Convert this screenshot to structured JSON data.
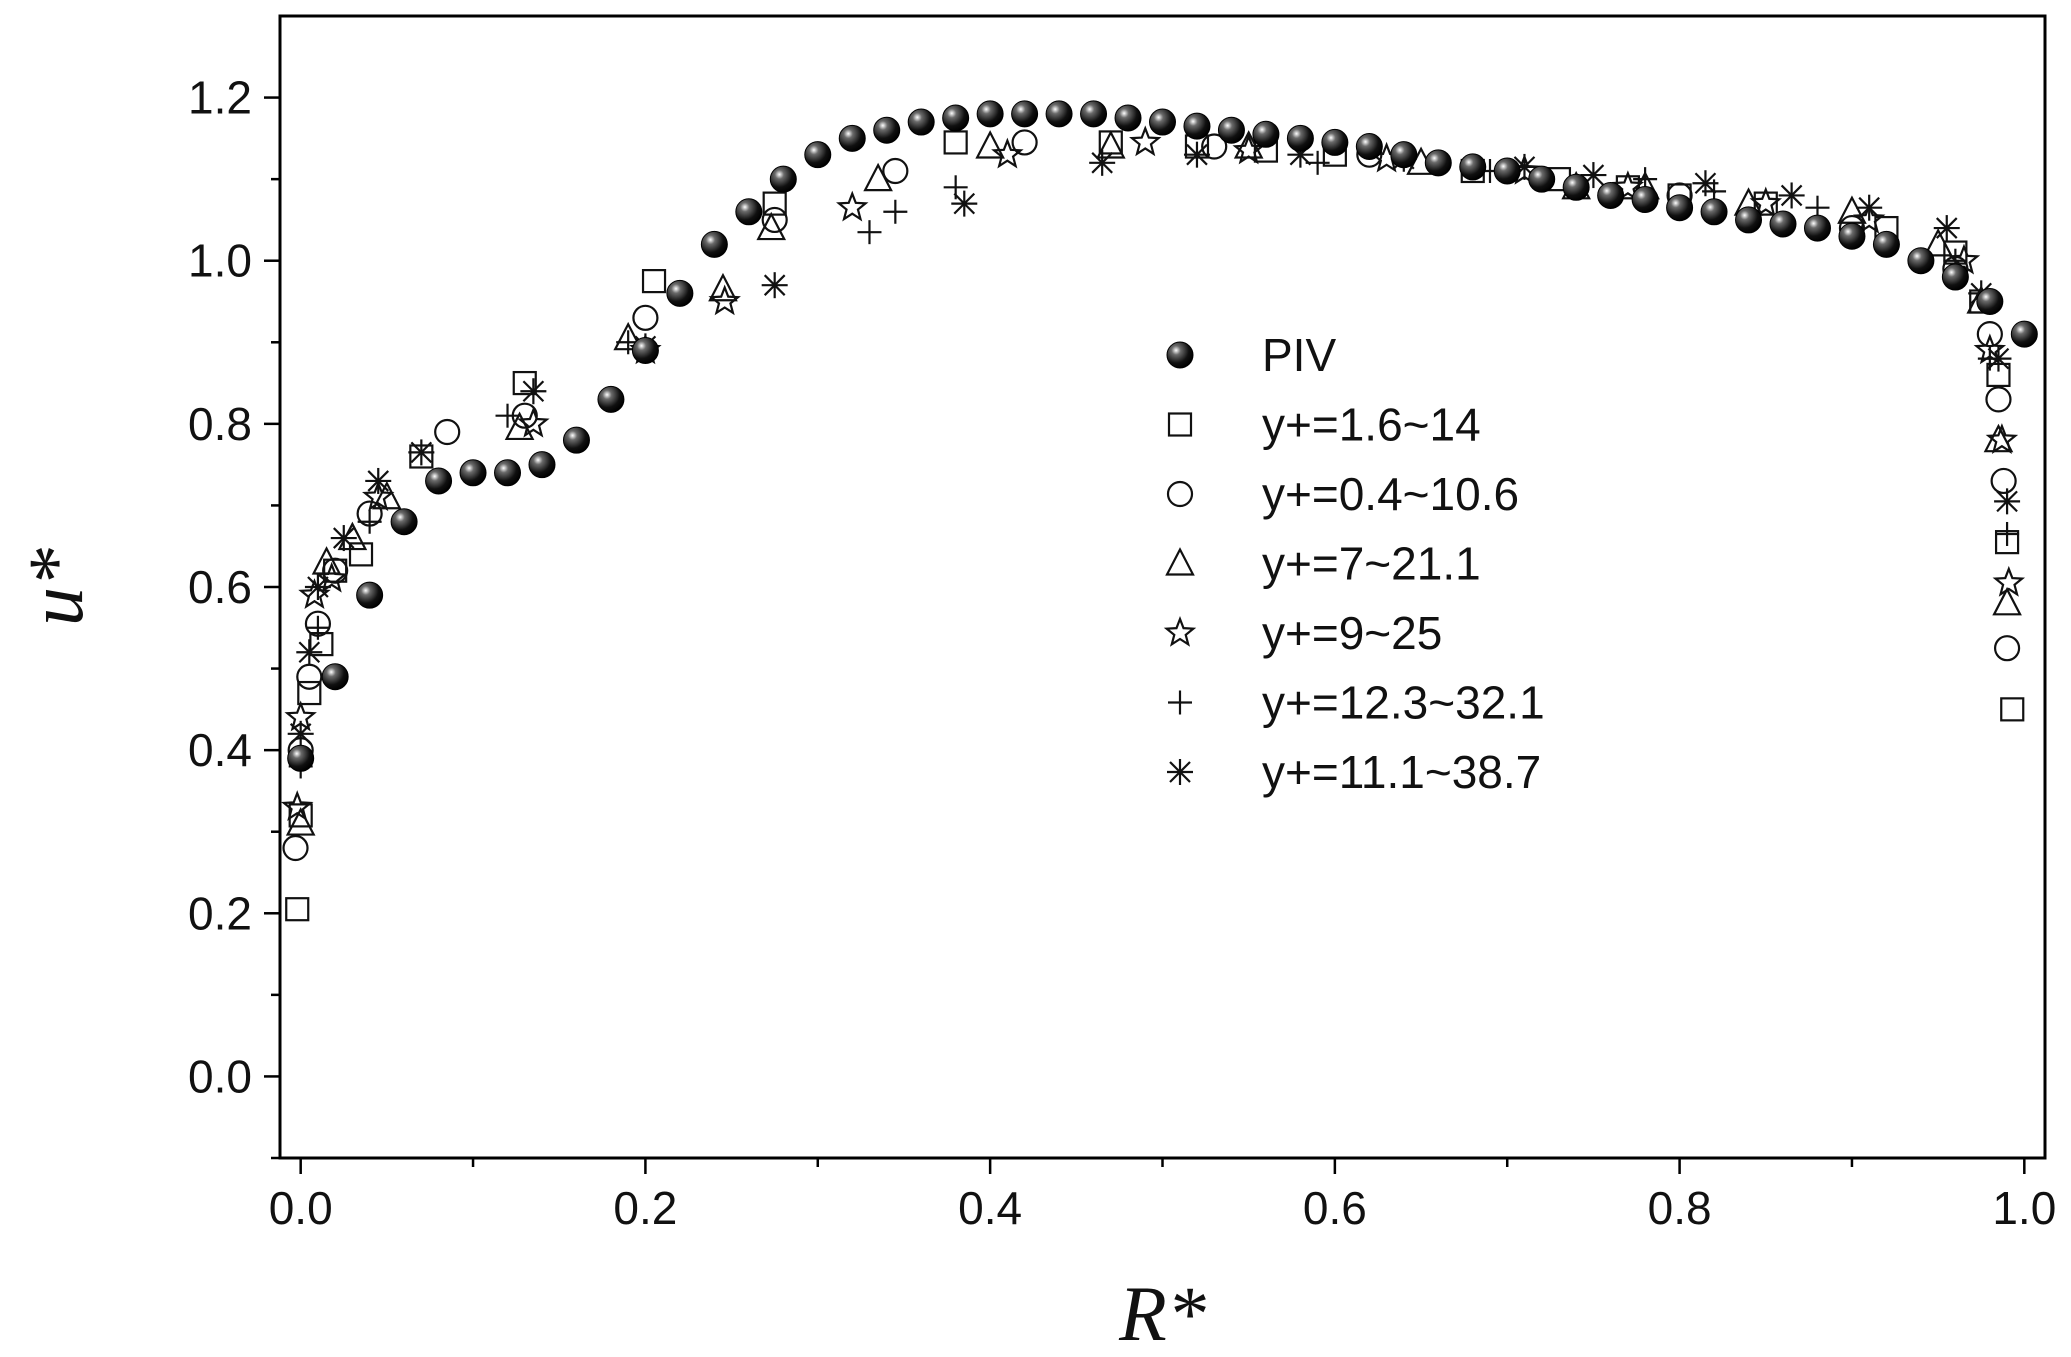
{
  "chart_data": {
    "type": "scatter",
    "xlabel": "R*",
    "ylabel": "u*",
    "xlim": [
      -0.012,
      1.012
    ],
    "ylim": [
      -0.1,
      1.3
    ],
    "xticks": [
      "0.0",
      "0.2",
      "0.4",
      "0.6",
      "0.8",
      "1.0"
    ],
    "yticks": [
      "0.0",
      "0.2",
      "0.4",
      "0.6",
      "0.8",
      "1.0",
      "1.2"
    ],
    "legend_position": "center-right",
    "series": [
      {
        "name": "PIV",
        "marker": "filled-circle",
        "x": [
          0.0,
          0.02,
          0.04,
          0.06,
          0.08,
          0.1,
          0.12,
          0.14,
          0.16,
          0.18,
          0.2,
          0.22,
          0.24,
          0.26,
          0.28,
          0.3,
          0.32,
          0.34,
          0.36,
          0.38,
          0.4,
          0.42,
          0.44,
          0.46,
          0.48,
          0.5,
          0.52,
          0.54,
          0.56,
          0.58,
          0.6,
          0.62,
          0.64,
          0.66,
          0.68,
          0.7,
          0.72,
          0.74,
          0.76,
          0.78,
          0.8,
          0.82,
          0.84,
          0.86,
          0.88,
          0.9,
          0.92,
          0.94,
          0.96,
          0.98,
          1.0
        ],
        "y": [
          0.39,
          0.49,
          0.59,
          0.68,
          0.73,
          0.74,
          0.74,
          0.75,
          0.78,
          0.83,
          0.89,
          0.96,
          1.02,
          1.06,
          1.1,
          1.13,
          1.15,
          1.16,
          1.17,
          1.175,
          1.18,
          1.18,
          1.18,
          1.18,
          1.175,
          1.17,
          1.165,
          1.16,
          1.155,
          1.15,
          1.145,
          1.14,
          1.13,
          1.12,
          1.115,
          1.11,
          1.1,
          1.09,
          1.08,
          1.075,
          1.065,
          1.06,
          1.05,
          1.045,
          1.04,
          1.03,
          1.02,
          1.0,
          0.98,
          0.95,
          0.91
        ]
      },
      {
        "name": "y+=1.6~14",
        "marker": "open-square",
        "x": [
          -0.002,
          0.0,
          0.005,
          0.012,
          0.02,
          0.035,
          0.07,
          0.13,
          0.205,
          0.275,
          0.38,
          0.47,
          0.52,
          0.56,
          0.6,
          0.68,
          0.73,
          0.77,
          0.8,
          0.85,
          0.92,
          0.96,
          0.975,
          0.985,
          0.99,
          0.993
        ],
        "y": [
          0.205,
          0.32,
          0.47,
          0.53,
          0.62,
          0.64,
          0.76,
          0.85,
          0.975,
          1.07,
          1.145,
          1.145,
          1.14,
          1.135,
          1.13,
          1.11,
          1.1,
          1.09,
          1.08,
          1.07,
          1.04,
          1.01,
          0.95,
          0.86,
          0.655,
          0.45
        ]
      },
      {
        "name": "y+=0.4~10.6",
        "marker": "open-circle",
        "x": [
          -0.003,
          0.0,
          0.005,
          0.01,
          0.02,
          0.04,
          0.085,
          0.13,
          0.2,
          0.275,
          0.345,
          0.42,
          0.53,
          0.62,
          0.72,
          0.8,
          0.9,
          0.96,
          0.98,
          0.985,
          0.988,
          0.99
        ],
        "y": [
          0.28,
          0.4,
          0.49,
          0.555,
          0.62,
          0.69,
          0.79,
          0.81,
          0.93,
          1.05,
          1.11,
          1.145,
          1.14,
          1.13,
          1.1,
          1.08,
          1.04,
          0.99,
          0.91,
          0.83,
          0.73,
          0.525
        ]
      },
      {
        "name": "y+=7~21.1",
        "marker": "open-triangle",
        "x": [
          0.0,
          0.015,
          0.03,
          0.05,
          0.127,
          0.19,
          0.245,
          0.273,
          0.335,
          0.4,
          0.47,
          0.55,
          0.65,
          0.74,
          0.78,
          0.84,
          0.9,
          0.95,
          0.975,
          0.985,
          0.99
        ],
        "y": [
          0.31,
          0.63,
          0.66,
          0.71,
          0.795,
          0.905,
          0.965,
          1.04,
          1.1,
          1.14,
          1.14,
          1.14,
          1.12,
          1.09,
          1.09,
          1.07,
          1.06,
          1.02,
          0.95,
          0.78,
          0.58
        ]
      },
      {
        "name": "y+=9~25",
        "marker": "open-star",
        "x": [
          -0.002,
          0.0,
          0.008,
          0.018,
          0.045,
          0.135,
          0.2,
          0.246,
          0.32,
          0.41,
          0.49,
          0.55,
          0.63,
          0.71,
          0.77,
          0.85,
          0.91,
          0.965,
          0.98,
          0.987,
          0.991
        ],
        "y": [
          0.33,
          0.44,
          0.59,
          0.61,
          0.71,
          0.8,
          0.89,
          0.95,
          1.065,
          1.13,
          1.145,
          1.135,
          1.125,
          1.11,
          1.09,
          1.07,
          1.05,
          1.0,
          0.89,
          0.78,
          0.605
        ]
      },
      {
        "name": "y+=12.3~32.1",
        "marker": "plus",
        "x": [
          0.0,
          0.01,
          0.04,
          0.12,
          0.19,
          0.33,
          0.345,
          0.38,
          0.59,
          0.69,
          0.78,
          0.82,
          0.88,
          0.96,
          0.98,
          0.99
        ],
        "y": [
          0.38,
          0.55,
          0.68,
          0.81,
          0.9,
          1.035,
          1.06,
          1.09,
          1.12,
          1.11,
          1.1,
          1.085,
          1.065,
          1.0,
          0.88,
          0.665
        ]
      },
      {
        "name": "y+=11.1~38.7",
        "marker": "asterisk",
        "x": [
          0.0,
          0.005,
          0.01,
          0.025,
          0.045,
          0.07,
          0.135,
          0.2,
          0.275,
          0.385,
          0.465,
          0.52,
          0.58,
          0.64,
          0.71,
          0.75,
          0.815,
          0.865,
          0.91,
          0.955,
          0.975,
          0.985,
          0.99
        ],
        "y": [
          0.42,
          0.52,
          0.6,
          0.66,
          0.73,
          0.765,
          0.84,
          0.895,
          0.97,
          1.07,
          1.12,
          1.13,
          1.13,
          1.125,
          1.115,
          1.105,
          1.095,
          1.08,
          1.065,
          1.04,
          0.96,
          0.88,
          0.705
        ]
      }
    ]
  }
}
